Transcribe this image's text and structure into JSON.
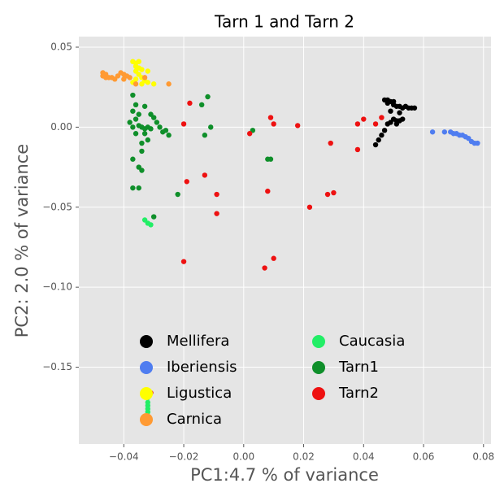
{
  "chart_data": {
    "type": "scatter",
    "title": "Tarn 1 and Tarn 2",
    "x_label": "PC1:4.7 % of variance",
    "y_label": "PC2: 2.0 % of variance",
    "xlim": [
      -0.055,
      0.0825
    ],
    "ylim": [
      -0.198,
      0.0566
    ],
    "xticks": [
      {
        "value": -0.04,
        "label": "−0.04"
      },
      {
        "value": -0.02,
        "label": "−0.02"
      },
      {
        "value": 0,
        "label": "0.00"
      },
      {
        "value": 0.02,
        "label": "0.02"
      },
      {
        "value": 0.04,
        "label": "0.04"
      },
      {
        "value": 0.06,
        "label": "0.06"
      },
      {
        "value": 0.08,
        "label": "0.08"
      }
    ],
    "yticks": [
      {
        "value": 0.05,
        "label": "0.05"
      },
      {
        "value": 0,
        "label": "0.00"
      },
      {
        "value": -0.05,
        "label": "−0.05"
      },
      {
        "value": -0.1,
        "label": "−0.10"
      },
      {
        "value": -0.15,
        "label": "−0.15"
      }
    ],
    "grid": true,
    "legend": "lower right",
    "legend_columns": 2,
    "series": [
      {
        "name": "Mellifera",
        "color": "#000000",
        "x": [
          0.047,
          0.048,
          0.049,
          0.05,
          0.048,
          0.05,
          0.051,
          0.052,
          0.053,
          0.054,
          0.055,
          0.056,
          0.057,
          0.049,
          0.05,
          0.051,
          0.052,
          0.053,
          0.049,
          0.048,
          0.047,
          0.046,
          0.045,
          0.044,
          0.052,
          0.051
        ],
        "y": [
          0.017,
          0.017,
          0.016,
          0.016,
          0.015,
          0.014,
          0.013,
          0.013,
          0.012,
          0.013,
          0.012,
          0.012,
          0.012,
          0.01,
          0.005,
          0.004,
          0.004,
          0.005,
          0.003,
          0.002,
          -0.002,
          -0.005,
          -0.008,
          -0.011,
          0.009,
          0.002
        ]
      },
      {
        "name": "Iberiensis",
        "color": "#4f7df0",
        "x": [
          0.063,
          0.067,
          0.069,
          0.07,
          0.071,
          0.072,
          0.073,
          0.074,
          0.075,
          0.076,
          0.077,
          0.078
        ],
        "y": [
          -0.003,
          -0.003,
          -0.003,
          -0.004,
          -0.004,
          -0.005,
          -0.005,
          -0.006,
          -0.007,
          -0.009,
          -0.01,
          -0.01
        ]
      },
      {
        "name": "Ligustica",
        "color": "#ffff00",
        "x": [
          -0.037,
          -0.036,
          -0.035,
          -0.036,
          -0.035,
          -0.036,
          -0.034,
          -0.032,
          -0.035,
          -0.034,
          -0.036,
          -0.033,
          -0.032,
          -0.034,
          -0.03,
          -0.037
        ],
        "y": [
          0.041,
          0.04,
          0.041,
          0.038,
          0.037,
          0.035,
          0.036,
          0.035,
          0.033,
          0.031,
          0.03,
          0.029,
          0.028,
          0.027,
          0.027,
          0.028
        ]
      },
      {
        "name": "Carnica",
        "color": "#ff9a33",
        "x": [
          -0.047,
          -0.046,
          -0.047,
          -0.046,
          -0.045,
          -0.044,
          -0.042,
          -0.041,
          -0.04,
          -0.039,
          -0.038,
          -0.04,
          -0.043,
          -0.025,
          -0.036,
          -0.033
        ],
        "y": [
          0.034,
          0.033,
          0.032,
          0.031,
          0.031,
          0.031,
          0.032,
          0.034,
          0.033,
          0.032,
          0.031,
          0.03,
          0.03,
          0.027,
          0.027,
          0.031
        ]
      },
      {
        "name": "Caucasia",
        "color": "#22ee66",
        "x": [
          -0.033,
          -0.032,
          -0.031,
          -0.032,
          -0.032,
          -0.032,
          -0.032,
          -0.032
        ],
        "y": [
          -0.058,
          -0.06,
          -0.061,
          -0.169,
          -0.172,
          -0.174,
          -0.176,
          -0.178
        ]
      },
      {
        "name": "Tarn1",
        "color": "#0f8f2a",
        "x": [
          -0.037,
          -0.036,
          -0.037,
          -0.036,
          -0.035,
          -0.037,
          -0.034,
          -0.033,
          -0.032,
          -0.031,
          -0.031,
          -0.03,
          -0.029,
          -0.028,
          -0.027,
          -0.025,
          -0.026,
          -0.036,
          -0.033,
          -0.032,
          -0.034,
          -0.034,
          -0.037,
          -0.035,
          -0.034,
          -0.037,
          -0.035,
          -0.03,
          -0.022,
          -0.012,
          -0.014,
          -0.011,
          -0.013,
          0.003,
          0.008,
          0.009,
          -0.033,
          -0.035,
          -0.038
        ],
        "y": [
          0.02,
          0.014,
          0.01,
          0.005,
          0.001,
          0,
          0,
          -0.001,
          0,
          -0.001,
          0.008,
          0.006,
          0.003,
          0,
          -0.003,
          -0.005,
          -0.002,
          -0.004,
          -0.004,
          -0.008,
          -0.01,
          -0.015,
          -0.02,
          -0.025,
          -0.027,
          -0.038,
          -0.038,
          -0.056,
          -0.042,
          0.019,
          0.014,
          0,
          -0.005,
          -0.002,
          -0.02,
          -0.02,
          0.013,
          0.008,
          0.003
        ]
      },
      {
        "name": "Tarn2",
        "color": "#ee1111",
        "x": [
          -0.018,
          -0.02,
          -0.019,
          -0.013,
          -0.009,
          -0.009,
          -0.02,
          0.002,
          0.009,
          0.01,
          0.018,
          0.008,
          0.007,
          0.01,
          0.022,
          0.028,
          0.03,
          0.029,
          0.038,
          0.04,
          0.044,
          0.038,
          0.046,
          -0.031
        ],
        "y": [
          0.015,
          0.002,
          -0.034,
          -0.03,
          -0.042,
          -0.054,
          -0.084,
          -0.004,
          0.006,
          0.002,
          0.001,
          -0.04,
          -0.088,
          -0.082,
          -0.05,
          -0.042,
          -0.041,
          -0.01,
          0.002,
          0.005,
          0.002,
          -0.014,
          0.006,
          -0.166
        ]
      }
    ]
  }
}
